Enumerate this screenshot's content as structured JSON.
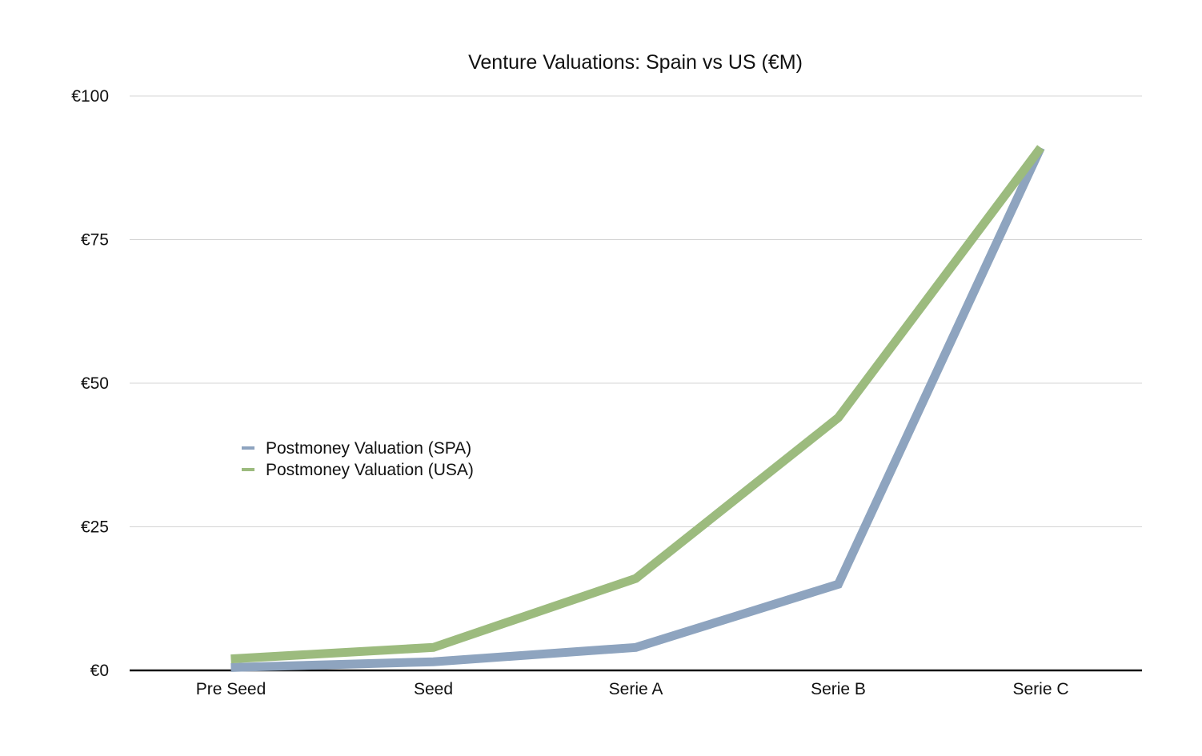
{
  "chart_data": {
    "type": "line",
    "title": "Venture Valuations: Spain vs US (€M)",
    "xlabel": "",
    "ylabel": "",
    "categories": [
      "Pre Seed",
      "Seed",
      "Serie A",
      "Serie B",
      "Serie C"
    ],
    "ylim": [
      0,
      100
    ],
    "yticks": [
      0,
      25,
      50,
      75,
      100
    ],
    "ytick_labels": [
      "€0",
      "€25",
      "€50",
      "€75",
      "€100"
    ],
    "grid": true,
    "legend_position": "center-left",
    "series": [
      {
        "name": "Postmoney Valuation (SPA)",
        "color": "#8ea4bf",
        "values": [
          0.5,
          1.5,
          4,
          15,
          91
        ]
      },
      {
        "name": "Postmoney Valuation (USA)",
        "color": "#9cbb7e",
        "values": [
          2,
          4,
          16,
          44,
          91
        ]
      }
    ]
  }
}
